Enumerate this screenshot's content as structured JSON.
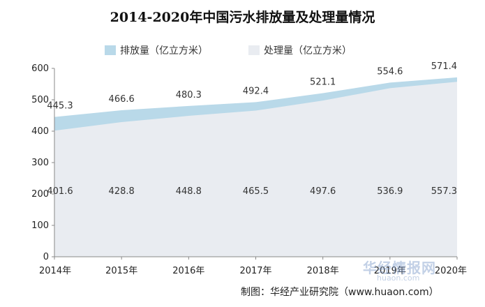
{
  "chart_data": {
    "type": "area",
    "title": "2014-2020年中国污水排放量及处理量情况",
    "categories": [
      "2014年",
      "2015年",
      "2016年",
      "2017年",
      "2018年",
      "2019年",
      "2020年"
    ],
    "series": [
      {
        "name": "排放量（亿立方米）",
        "values": [
          445.3,
          466.6,
          480.3,
          492.4,
          521.1,
          554.6,
          571.4
        ],
        "color": "#b9d9e9"
      },
      {
        "name": "处理量（亿立方米）",
        "values": [
          401.6,
          428.8,
          448.8,
          465.5,
          497.6,
          536.9,
          557.3
        ],
        "color": "#e9ecf1"
      }
    ],
    "y_ticks": [
      "0",
      "100",
      "200",
      "300",
      "400",
      "500",
      "600"
    ],
    "ylim": [
      0,
      600
    ],
    "grid": false,
    "legend_position": "top"
  },
  "source": "制图：华经产业研究院（www.huaon.com）",
  "watermark": {
    "name": "华经情报网",
    "url": "huaon.com"
  }
}
